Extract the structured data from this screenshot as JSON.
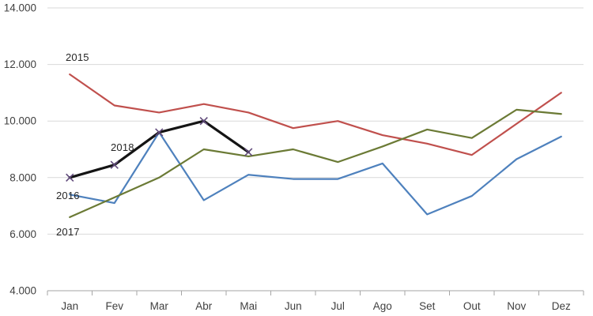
{
  "chart_data": {
    "type": "line",
    "title": "",
    "categories": [
      "Jan",
      "Fev",
      "Mar",
      "Abr",
      "Mai",
      "Jun",
      "Jul",
      "Ago",
      "Set",
      "Out",
      "Nov",
      "Dez"
    ],
    "y_axis": {
      "min": 4000,
      "max": 14000,
      "step": 2000,
      "tick_labels": [
        "4.000",
        "6.000",
        "8.000",
        "10.000",
        "12.000",
        "14.000"
      ]
    },
    "grid": true,
    "legend": "inline-series-labels",
    "series": [
      {
        "name": "2015",
        "color": "#C0504D",
        "stroke_width": 2.2,
        "marker": "none",
        "values": [
          11650,
          10550,
          10300,
          10600,
          10300,
          9750,
          10000,
          9500,
          9200,
          8800,
          9900,
          11000
        ]
      },
      {
        "name": "2016",
        "color": "#4E81BD",
        "stroke_width": 2.2,
        "marker": "none",
        "values": [
          7400,
          7100,
          9600,
          7200,
          8100,
          7950,
          7950,
          8500,
          6700,
          7350,
          8650,
          9450
        ]
      },
      {
        "name": "2017",
        "color": "#6B7A35",
        "stroke_width": 2.2,
        "marker": "none",
        "values": [
          6600,
          7300,
          8000,
          9000,
          8750,
          9000,
          8550,
          9100,
          9700,
          9400,
          10400,
          10250
        ]
      },
      {
        "name": "2018",
        "color": "#141414",
        "stroke_width": 3.2,
        "marker": "x",
        "marker_color": "#604A7B",
        "values": [
          8000,
          8450,
          9600,
          10000,
          8900
        ]
      }
    ],
    "palette": {
      "gridline": "#D9D9D9",
      "axis_line": "#A6A6A6",
      "tick_mark": "#A6A6A6",
      "tick_text": "#404040"
    }
  }
}
